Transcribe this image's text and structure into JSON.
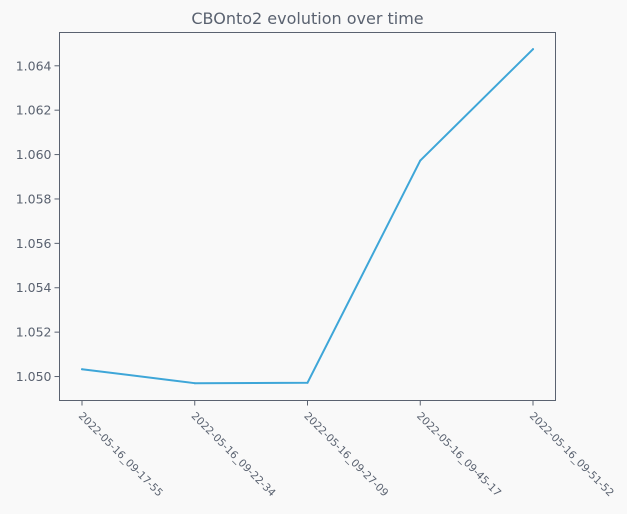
{
  "chart_data": {
    "type": "line",
    "title": "CBOnto2 evolution over time",
    "xlabel": "",
    "ylabel": "",
    "categories": [
      "2022-05-16_09-17-55",
      "2022-05-16_09-22-34",
      "2022-05-16_09-27-09",
      "2022-05-16_09-45-17",
      "2022-05-16_09-51-52"
    ],
    "series": [
      {
        "values": [
          1.05033,
          1.0497,
          1.04972,
          1.05973,
          1.06475
        ]
      }
    ],
    "yticks": [
      "1.050",
      "1.052",
      "1.054",
      "1.056",
      "1.058",
      "1.060",
      "1.062",
      "1.064"
    ],
    "ylim": [
      1.04892,
      1.0655
    ],
    "grid": false,
    "line_color": "#3ea6d8",
    "axis_color": "#5a6270",
    "background": "#f9f9f9"
  }
}
